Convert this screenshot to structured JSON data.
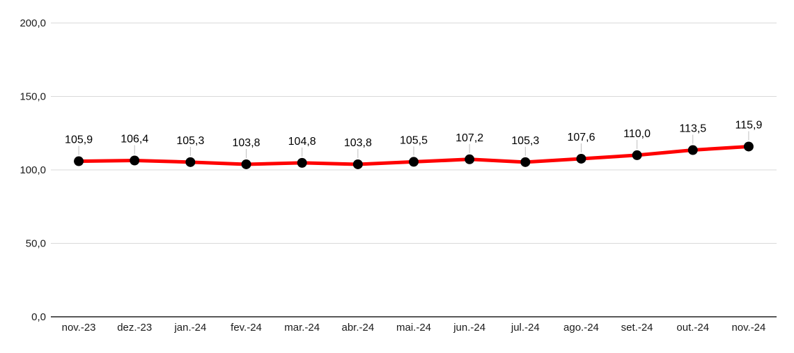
{
  "chart_data": {
    "type": "line",
    "categories": [
      "nov.-23",
      "dez.-23",
      "jan.-24",
      "fev.-24",
      "mar.-24",
      "abr.-24",
      "mai.-24",
      "jun.-24",
      "jul.-24",
      "ago.-24",
      "set.-24",
      "out.-24",
      "nov.-24"
    ],
    "values": [
      105.9,
      106.4,
      105.3,
      103.8,
      104.8,
      103.8,
      105.5,
      107.2,
      105.3,
      107.6,
      110.0,
      113.5,
      115.9
    ],
    "value_labels": [
      "105,9",
      "106,4",
      "105,3",
      "103,8",
      "104,8",
      "103,8",
      "105,5",
      "107,2",
      "105,3",
      "107,6",
      "110,0",
      "113,5",
      "115,9"
    ],
    "y_ticks": [
      {
        "value": 200,
        "label": "200,0"
      },
      {
        "value": 150,
        "label": "150,0"
      },
      {
        "value": 100,
        "label": "100,0"
      },
      {
        "value": 50,
        "label": "50,0"
      },
      {
        "value": 0,
        "label": "0,0"
      }
    ],
    "ylim": [
      0,
      200
    ],
    "title": "",
    "xlabel": "",
    "ylabel": "",
    "grid": true,
    "legend": "none",
    "colors": {
      "series_line": "#ff0000",
      "marker_fill": "#000000",
      "gridline": "#d9d9d9",
      "axis_line": "#404040",
      "tick_text": "#1a1a1a",
      "data_label_text": "#000000",
      "leader_line": "#bfbfbf",
      "background": "#ffffff"
    }
  }
}
